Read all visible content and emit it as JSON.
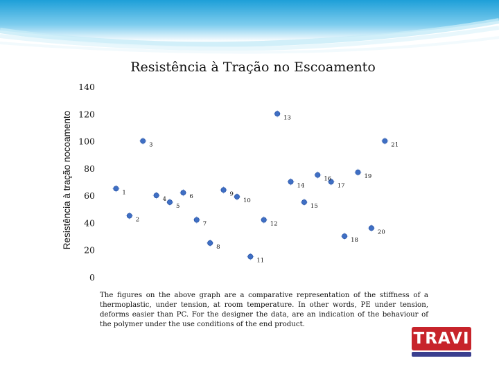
{
  "chart_data": {
    "type": "scatter",
    "title": "Resistência à Tração no Escoamento",
    "ylabel": "Resistência à tração nocoamento",
    "xlabel": "",
    "ylim": [
      0,
      140
    ],
    "xlim": [
      0,
      21.5
    ],
    "yticks": [
      0,
      20,
      40,
      60,
      80,
      100,
      120,
      140
    ],
    "ytick_labels": [
      "0",
      "20",
      "40",
      "60",
      "80",
      "100",
      "120",
      "140"
    ],
    "grid": false,
    "marker_color": "#3f6fc4",
    "points": [
      {
        "label": "1",
        "x": 1,
        "y": 65
      },
      {
        "label": "2",
        "x": 2,
        "y": 45
      },
      {
        "label": "3",
        "x": 3,
        "y": 100
      },
      {
        "label": "4",
        "x": 4,
        "y": 60
      },
      {
        "label": "5",
        "x": 5,
        "y": 55
      },
      {
        "label": "6",
        "x": 6,
        "y": 62
      },
      {
        "label": "7",
        "x": 7,
        "y": 42
      },
      {
        "label": "8",
        "x": 8,
        "y": 25
      },
      {
        "label": "9",
        "x": 9,
        "y": 64
      },
      {
        "label": "10",
        "x": 10,
        "y": 59
      },
      {
        "label": "11",
        "x": 11,
        "y": 15
      },
      {
        "label": "12",
        "x": 12,
        "y": 42
      },
      {
        "label": "13",
        "x": 13,
        "y": 120
      },
      {
        "label": "14",
        "x": 14,
        "y": 70
      },
      {
        "label": "15",
        "x": 15,
        "y": 55
      },
      {
        "label": "16",
        "x": 16,
        "y": 75
      },
      {
        "label": "17",
        "x": 17,
        "y": 70
      },
      {
        "label": "18",
        "x": 18,
        "y": 30
      },
      {
        "label": "19",
        "x": 19,
        "y": 77
      },
      {
        "label": "20",
        "x": 20,
        "y": 36
      },
      {
        "label": "21",
        "x": 21,
        "y": 100
      }
    ]
  },
  "footnote": "The figures on the above graph are a comparative representation of the stiffness of a thermoplastic, under tension, at room temperature. In other words, PE under tension, deforms easier than PC. For the designer the data, are an indication of the behaviour of the polymer under the use conditions of the end product.",
  "logo": {
    "text": "TRAVI",
    "brand_color": "#c7242b",
    "bar_color": "#3a3f8f"
  },
  "banner_colors": {
    "top": "#29a9dd",
    "mid": "#8ed3ef",
    "light": "#e3f4fb"
  }
}
